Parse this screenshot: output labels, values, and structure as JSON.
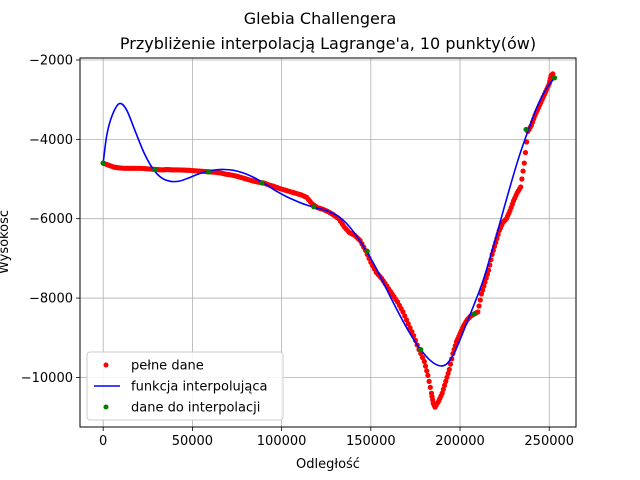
{
  "chart_data": {
    "type": "line",
    "title": "Glebia Challengera",
    "subtitle": "Przybliżenie interpolacją Lagrange'a, 10 punkty(ów)",
    "xlabel": "Odległość",
    "ylabel": "Wysokość",
    "xlim": [
      -13000,
      265000
    ],
    "ylim": [
      -11250,
      -1950
    ],
    "x_ticks": [
      0,
      50000,
      100000,
      150000,
      200000,
      250000
    ],
    "x_tick_labels": [
      "0",
      "50000",
      "100000",
      "150000",
      "200000",
      "250000"
    ],
    "y_ticks": [
      -10000,
      -8000,
      -6000,
      -4000,
      -2000
    ],
    "y_tick_labels": [
      "−10000",
      "−8000",
      "−6000",
      "−4000",
      "−2000"
    ],
    "grid": true,
    "legend_position": "lower-left",
    "legend": [
      "pełne dane",
      "funkcja interpolująca",
      "dane do interpolacji"
    ],
    "colors": {
      "full_data": "#ff0000",
      "interp": "#0000ff",
      "nodes": "#008000",
      "grid": "#b0b0b0"
    },
    "series": [
      {
        "name": "pełne dane",
        "kind": "scatter",
        "points": [
          [
            0,
            -4600
          ],
          [
            3000,
            -4650
          ],
          [
            6000,
            -4700
          ],
          [
            9000,
            -4720
          ],
          [
            12000,
            -4730
          ],
          [
            15000,
            -4730
          ],
          [
            18000,
            -4730
          ],
          [
            21000,
            -4730
          ],
          [
            24000,
            -4740
          ],
          [
            27000,
            -4750
          ],
          [
            30000,
            -4760
          ],
          [
            33000,
            -4770
          ],
          [
            36000,
            -4760
          ],
          [
            39000,
            -4770
          ],
          [
            42000,
            -4770
          ],
          [
            45000,
            -4775
          ],
          [
            48000,
            -4780
          ],
          [
            51000,
            -4790
          ],
          [
            54000,
            -4800
          ],
          [
            57000,
            -4810
          ],
          [
            60000,
            -4820
          ],
          [
            63000,
            -4830
          ],
          [
            66000,
            -4850
          ],
          [
            69000,
            -4880
          ],
          [
            72000,
            -4900
          ],
          [
            75000,
            -4930
          ],
          [
            78000,
            -4970
          ],
          [
            81000,
            -5010
          ],
          [
            84000,
            -5050
          ],
          [
            87000,
            -5080
          ],
          [
            90000,
            -5100
          ],
          [
            93000,
            -5150
          ],
          [
            96000,
            -5190
          ],
          [
            99000,
            -5240
          ],
          [
            102000,
            -5280
          ],
          [
            105000,
            -5320
          ],
          [
            108000,
            -5360
          ],
          [
            111000,
            -5400
          ],
          [
            114000,
            -5460
          ],
          [
            117000,
            -5620
          ],
          [
            120000,
            -5720
          ],
          [
            123000,
            -5760
          ],
          [
            126000,
            -5820
          ],
          [
            129000,
            -5900
          ],
          [
            132000,
            -6000
          ],
          [
            135000,
            -6200
          ],
          [
            138000,
            -6350
          ],
          [
            141000,
            -6420
          ],
          [
            144000,
            -6550
          ],
          [
            147000,
            -6800
          ],
          [
            150000,
            -7100
          ],
          [
            153000,
            -7350
          ],
          [
            156000,
            -7500
          ],
          [
            159000,
            -7700
          ],
          [
            162000,
            -7900
          ],
          [
            165000,
            -8100
          ],
          [
            168000,
            -8350
          ],
          [
            171000,
            -8650
          ],
          [
            174000,
            -8950
          ],
          [
            177000,
            -9300
          ],
          [
            180000,
            -9600
          ],
          [
            182000,
            -9950
          ],
          [
            184000,
            -10400
          ],
          [
            185000,
            -10650
          ],
          [
            186000,
            -10750
          ],
          [
            188000,
            -10600
          ],
          [
            190000,
            -10400
          ],
          [
            192000,
            -10100
          ],
          [
            194000,
            -9800
          ],
          [
            196000,
            -9400
          ],
          [
            198000,
            -9100
          ],
          [
            200000,
            -8900
          ],
          [
            202000,
            -8700
          ],
          [
            204000,
            -8550
          ],
          [
            206000,
            -8450
          ],
          [
            208000,
            -8400
          ],
          [
            210000,
            -8350
          ],
          [
            212000,
            -7900
          ],
          [
            214000,
            -7600
          ],
          [
            216000,
            -7300
          ],
          [
            218000,
            -6900
          ],
          [
            220000,
            -6600
          ],
          [
            222000,
            -6300
          ],
          [
            224000,
            -6100
          ],
          [
            226000,
            -6000
          ],
          [
            228000,
            -5800
          ],
          [
            230000,
            -5550
          ],
          [
            232000,
            -5350
          ],
          [
            234000,
            -5200
          ],
          [
            236000,
            -4600
          ],
          [
            238000,
            -3800
          ],
          [
            240000,
            -3650
          ],
          [
            242000,
            -3400
          ],
          [
            244000,
            -3200
          ],
          [
            246000,
            -3000
          ],
          [
            248000,
            -2800
          ],
          [
            250000,
            -2600
          ],
          [
            251000,
            -2400
          ],
          [
            252000,
            -2350
          ]
        ]
      },
      {
        "name": "funkcja interpolująca",
        "kind": "line",
        "points": [
          [
            0,
            -4600
          ],
          [
            2000,
            -3900
          ],
          [
            5000,
            -3400
          ],
          [
            9000,
            -3100
          ],
          [
            13000,
            -3250
          ],
          [
            18000,
            -3800
          ],
          [
            23000,
            -4350
          ],
          [
            28000,
            -4750
          ],
          [
            33000,
            -4980
          ],
          [
            38000,
            -5060
          ],
          [
            43000,
            -5050
          ],
          [
            48000,
            -4970
          ],
          [
            53000,
            -4880
          ],
          [
            58000,
            -4810
          ],
          [
            63000,
            -4770
          ],
          [
            68000,
            -4760
          ],
          [
            73000,
            -4780
          ],
          [
            78000,
            -4840
          ],
          [
            83000,
            -4930
          ],
          [
            88000,
            -5050
          ],
          [
            93000,
            -5190
          ],
          [
            98000,
            -5330
          ],
          [
            103000,
            -5450
          ],
          [
            108000,
            -5550
          ],
          [
            113000,
            -5640
          ],
          [
            118000,
            -5710
          ],
          [
            123000,
            -5770
          ],
          [
            128000,
            -5850
          ],
          [
            133000,
            -5980
          ],
          [
            138000,
            -6200
          ],
          [
            143000,
            -6500
          ],
          [
            148000,
            -6850
          ],
          [
            153000,
            -7250
          ],
          [
            158000,
            -7700
          ],
          [
            163000,
            -8150
          ],
          [
            168000,
            -8580
          ],
          [
            173000,
            -8970
          ],
          [
            178000,
            -9300
          ],
          [
            183000,
            -9560
          ],
          [
            188000,
            -9700
          ],
          [
            192000,
            -9680
          ],
          [
            196000,
            -9450
          ],
          [
            200000,
            -9050
          ],
          [
            204000,
            -8600
          ],
          [
            208000,
            -8150
          ],
          [
            213000,
            -7550
          ],
          [
            218000,
            -6800
          ],
          [
            223000,
            -6000
          ],
          [
            228000,
            -5200
          ],
          [
            233000,
            -4450
          ],
          [
            238000,
            -3800
          ],
          [
            243000,
            -3200
          ],
          [
            248000,
            -2750
          ],
          [
            253000,
            -2450
          ]
        ]
      },
      {
        "name": "dane do interpolacji",
        "kind": "scatter",
        "points": [
          [
            0,
            -4600
          ],
          [
            29000,
            -4760
          ],
          [
            59000,
            -4820
          ],
          [
            89000,
            -5100
          ],
          [
            118000,
            -5700
          ],
          [
            148000,
            -6820
          ],
          [
            178000,
            -9300
          ],
          [
            208000,
            -8400
          ],
          [
            237000,
            -3750
          ],
          [
            253000,
            -2450
          ]
        ]
      }
    ]
  }
}
